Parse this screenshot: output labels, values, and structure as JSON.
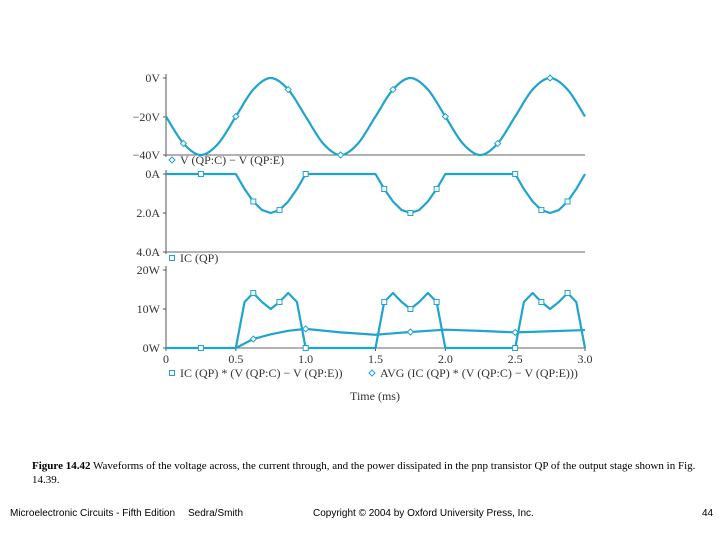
{
  "caption": {
    "label": "Figure 14.42",
    "text": "Waveforms of the voltage across, the current through, and the power dissipated in the pnp transistor QP of the output stage shown in Fig. 14.39."
  },
  "footer": {
    "book": "Microelectronic Circuits - Fifth Edition",
    "authors": "Sedra/Smith",
    "copyright": "Copyright © 2004 by Oxford University Press, Inc.",
    "page": "44"
  },
  "chart_data": [
    {
      "type": "line",
      "ylim": [
        -40,
        0
      ],
      "yticks": [
        "0V",
        "−20V",
        "−40V"
      ],
      "xlim": [
        0,
        3.0
      ],
      "grid": false,
      "series": [
        {
          "name": "V (QP:C) − V (QP:E)",
          "marker": "diamond",
          "x": [
            0,
            0.125,
            0.25,
            0.375,
            0.5,
            0.625,
            0.75,
            0.875,
            1.0,
            1.125,
            1.25,
            1.375,
            1.5,
            1.625,
            1.75,
            1.875,
            2.0,
            2.125,
            2.25,
            2.375,
            2.5,
            2.625,
            2.75,
            2.875,
            3.0
          ],
          "values": [
            -20,
            -34,
            -40,
            -34,
            -20,
            -6,
            0,
            -6,
            -20,
            -34,
            -40,
            -34,
            -20,
            -6,
            0,
            -6,
            -20,
            -34,
            -40,
            -34,
            -20,
            -6,
            0,
            -6,
            -20
          ]
        }
      ]
    },
    {
      "type": "line",
      "ylim": [
        -4.0,
        0
      ],
      "yticks": [
        "0A",
        "2.0A",
        "4.0A"
      ],
      "xlim": [
        0,
        3.0
      ],
      "grid": false,
      "series": [
        {
          "name": "IC (QP)",
          "marker": "square",
          "x": [
            0,
            0.25,
            0.5,
            0.5625,
            0.625,
            0.6875,
            0.75,
            0.8125,
            0.875,
            0.9375,
            1.0,
            1.25,
            1.5,
            1.5625,
            1.625,
            1.6875,
            1.75,
            1.8125,
            1.875,
            1.9375,
            2.0,
            2.25,
            2.5,
            2.5625,
            2.625,
            2.6875,
            2.75,
            2.8125,
            2.875,
            2.9375,
            3.0
          ],
          "values": [
            0,
            0,
            0,
            -0.77,
            -1.41,
            -1.85,
            -2.0,
            -1.85,
            -1.41,
            -0.77,
            0,
            0,
            0,
            -0.77,
            -1.41,
            -1.85,
            -2.0,
            -1.85,
            -1.41,
            -0.77,
            0,
            0,
            0,
            -0.77,
            -1.41,
            -1.85,
            -2.0,
            -1.85,
            -1.41,
            -0.77,
            0
          ]
        }
      ]
    },
    {
      "type": "line",
      "ylim": [
        0,
        20
      ],
      "yticks": [
        "20W",
        "10W",
        "0W"
      ],
      "xlim": [
        0,
        3.0
      ],
      "xticks": [
        "0",
        "0.5",
        "1.0",
        "1.5",
        "2.0",
        "2.5",
        "3.0"
      ],
      "xlabel": "Time (ms)",
      "grid": false,
      "series": [
        {
          "name": "IC (QP) * (V (QP:C) − V (QP:E))",
          "marker": "square",
          "x": [
            0,
            0.25,
            0.5,
            0.5625,
            0.625,
            0.6875,
            0.75,
            0.8125,
            0.875,
            0.9375,
            1.0,
            1.25,
            1.5,
            1.5625,
            1.625,
            1.6875,
            1.75,
            1.8125,
            1.875,
            1.9375,
            2.0,
            2.25,
            2.5,
            2.5625,
            2.625,
            2.6875,
            2.75,
            2.8125,
            2.875,
            2.9375,
            3.0
          ],
          "values": [
            0,
            0,
            0,
            11.8,
            14.1,
            11.8,
            10.0,
            11.8,
            14.1,
            11.8,
            0,
            0,
            0,
            11.8,
            14.1,
            11.8,
            10.0,
            11.8,
            14.1,
            11.8,
            0,
            0,
            0,
            11.8,
            14.1,
            11.8,
            10.0,
            11.8,
            14.1,
            11.8,
            0
          ]
        },
        {
          "name": "AVG (IC (QP) * (V (QP:C) − V (QP:E)))",
          "marker": "diamond",
          "x": [
            0.5,
            0.625,
            0.75,
            0.875,
            1.0,
            1.25,
            1.5,
            1.75,
            2.0,
            2.25,
            2.5,
            2.75,
            3.0
          ],
          "values": [
            0,
            2.3,
            3.5,
            4.4,
            4.9,
            4.0,
            3.4,
            4.1,
            4.7,
            4.4,
            4.0,
            4.3,
            4.6
          ]
        }
      ]
    }
  ]
}
